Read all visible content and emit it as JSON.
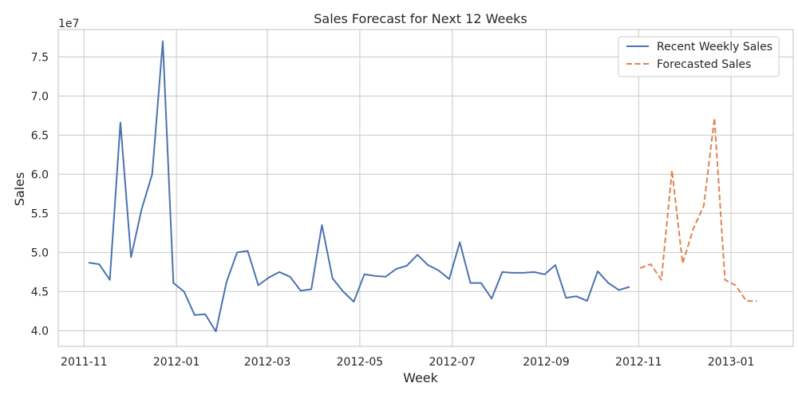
{
  "chart_data": {
    "type": "line",
    "title": "Sales Forecast for Next 12 Weeks",
    "xlabel": "Week",
    "ylabel": "Sales",
    "y_scale_label": "1e7",
    "y_unit_multiplier": 10000000,
    "ylim": [
      3.8,
      7.85
    ],
    "xlim": [
      "2011-10-15",
      "2013-02-11"
    ],
    "y_ticks": [
      "4.0",
      "4.5",
      "5.0",
      "5.5",
      "6.0",
      "6.5",
      "7.0",
      "7.5"
    ],
    "x_ticks": [
      "2011-11",
      "2012-01",
      "2012-03",
      "2012-05",
      "2012-07",
      "2012-09",
      "2012-11",
      "2013-01"
    ],
    "grid": true,
    "legend_position": "top-right",
    "series": [
      {
        "name": "Recent Weekly Sales",
        "color": "#4c72b0",
        "style": "solid",
        "x": [
          "2011-11-04",
          "2011-11-11",
          "2011-11-18",
          "2011-11-25",
          "2011-12-02",
          "2011-12-09",
          "2011-12-16",
          "2011-12-23",
          "2011-12-30",
          "2012-01-06",
          "2012-01-13",
          "2012-01-20",
          "2012-01-27",
          "2012-02-03",
          "2012-02-10",
          "2012-02-17",
          "2012-02-24",
          "2012-03-02",
          "2012-03-09",
          "2012-03-16",
          "2012-03-23",
          "2012-03-30",
          "2012-04-06",
          "2012-04-13",
          "2012-04-20",
          "2012-04-27",
          "2012-05-04",
          "2012-05-11",
          "2012-05-18",
          "2012-05-25",
          "2012-06-01",
          "2012-06-08",
          "2012-06-15",
          "2012-06-22",
          "2012-06-29",
          "2012-07-06",
          "2012-07-13",
          "2012-07-20",
          "2012-07-27",
          "2012-08-03",
          "2012-08-10",
          "2012-08-17",
          "2012-08-24",
          "2012-08-31",
          "2012-09-07",
          "2012-09-14",
          "2012-09-21",
          "2012-09-28",
          "2012-10-05",
          "2012-10-12",
          "2012-10-19",
          "2012-10-26"
        ],
        "values": [
          4.87,
          4.85,
          4.65,
          6.66,
          4.94,
          5.55,
          6.0,
          7.7,
          4.61,
          4.5,
          4.2,
          4.21,
          3.99,
          4.62,
          5.0,
          5.02,
          4.58,
          4.68,
          4.75,
          4.69,
          4.51,
          4.53,
          5.35,
          4.67,
          4.5,
          4.37,
          4.72,
          4.7,
          4.69,
          4.79,
          4.83,
          4.97,
          4.84,
          4.77,
          4.66,
          5.13,
          4.61,
          4.61,
          4.41,
          4.75,
          4.74,
          4.74,
          4.75,
          4.72,
          4.84,
          4.42,
          4.44,
          4.38,
          4.76,
          4.61,
          4.52,
          4.56
        ]
      },
      {
        "name": "Forecasted Sales",
        "color": "#dd8452",
        "style": "dashed",
        "x": [
          "2012-11-02",
          "2012-11-09",
          "2012-11-16",
          "2012-11-23",
          "2012-11-30",
          "2012-12-07",
          "2012-12-14",
          "2012-12-21",
          "2012-12-28",
          "2013-01-04",
          "2013-01-11",
          "2013-01-18"
        ],
        "values": [
          4.8,
          4.85,
          4.65,
          6.05,
          4.86,
          5.3,
          5.6,
          6.72,
          4.65,
          4.58,
          4.38,
          4.38
        ]
      }
    ]
  }
}
